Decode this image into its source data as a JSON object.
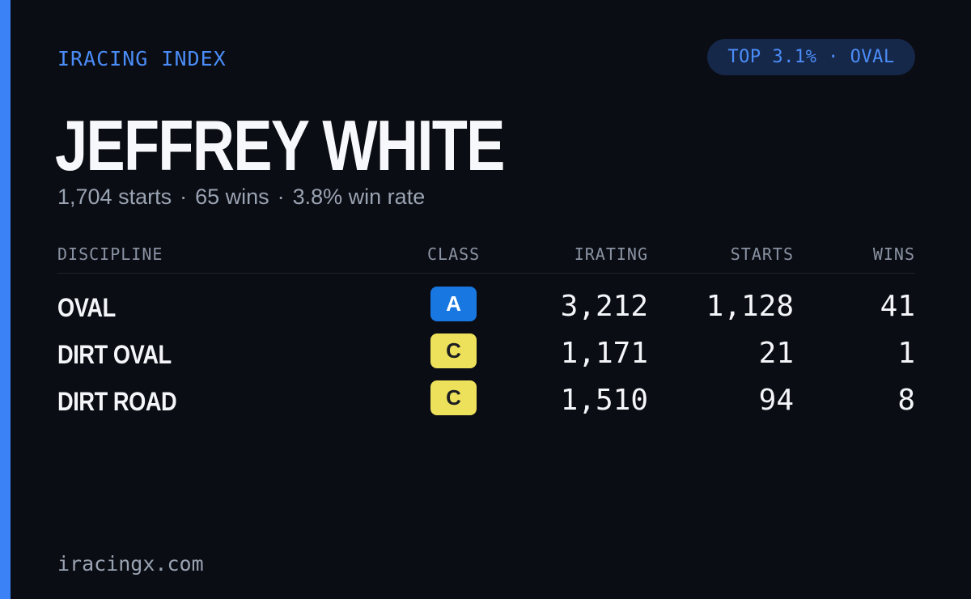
{
  "brand": "IRACING INDEX",
  "rank_pill": "TOP 3.1% · OVAL",
  "driver": {
    "name": "JEFFREY WHITE",
    "starts_text": "1,704 starts",
    "wins_text": "65 wins",
    "win_rate_text": "3.8% win rate",
    "separator": "·"
  },
  "table": {
    "headers": {
      "discipline": "DISCIPLINE",
      "class": "CLASS",
      "irating": "IRATING",
      "starts": "STARTS",
      "wins": "WINS"
    },
    "rows": [
      {
        "discipline": "OVAL",
        "class": "A",
        "irating": "3,212",
        "starts": "1,128",
        "wins": "41"
      },
      {
        "discipline": "DIRT OVAL",
        "class": "C",
        "irating": "1,171",
        "starts": "21",
        "wins": "1"
      },
      {
        "discipline": "DIRT ROAD",
        "class": "C",
        "irating": "1,510",
        "starts": "94",
        "wins": "8"
      }
    ]
  },
  "footer": "iracingx.com",
  "colors": {
    "background": "#0b0d14",
    "accent": "#3b82f6",
    "class_a": "#1877e0",
    "class_c": "#ede15b"
  }
}
